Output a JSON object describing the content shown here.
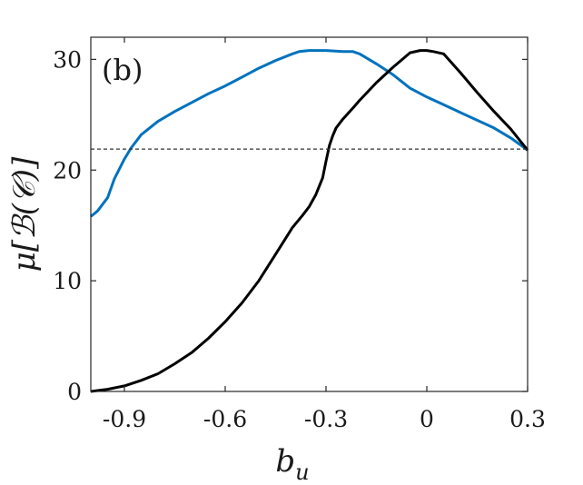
{
  "chart_data": {
    "type": "line",
    "panel_label": "(b)",
    "xlabel": "b_u",
    "ylabel": "μ[ℬ(𝒞)]",
    "xlim": [
      -1.0,
      0.3
    ],
    "ylim": [
      0,
      32
    ],
    "xticks": [
      -0.9,
      -0.6,
      -0.3,
      0,
      0.3
    ],
    "xtick_labels": [
      "-0.9",
      "-0.6",
      "-0.3",
      "0",
      "0.3"
    ],
    "yticks": [
      0,
      10,
      20,
      30
    ],
    "ytick_labels": [
      "0",
      "10",
      "20",
      "30"
    ],
    "grid": false,
    "reference_line": {
      "y": 21.9,
      "style": "dashed",
      "color": "#333333"
    },
    "series": [
      {
        "color": "#0072BD",
        "x": [
          -1.0,
          -0.98,
          -0.95,
          -0.93,
          -0.9,
          -0.88,
          -0.85,
          -0.8,
          -0.75,
          -0.7,
          -0.65,
          -0.6,
          -0.55,
          -0.5,
          -0.45,
          -0.4,
          -0.38,
          -0.35,
          -0.3,
          -0.25,
          -0.22,
          -0.2,
          -0.15,
          -0.1,
          -0.05,
          0.0,
          0.05,
          0.1,
          0.15,
          0.2,
          0.25,
          0.3
        ],
        "y": [
          15.8,
          16.3,
          17.5,
          19.2,
          21.0,
          22.0,
          23.2,
          24.4,
          25.3,
          26.1,
          26.9,
          27.6,
          28.4,
          29.2,
          29.9,
          30.5,
          30.7,
          30.8,
          30.8,
          30.7,
          30.7,
          30.5,
          29.6,
          28.6,
          27.4,
          26.6,
          25.9,
          25.2,
          24.5,
          23.8,
          22.9,
          21.8
        ]
      },
      {
        "color": "#000000",
        "x": [
          -1.0,
          -0.95,
          -0.9,
          -0.85,
          -0.8,
          -0.75,
          -0.7,
          -0.65,
          -0.6,
          -0.55,
          -0.5,
          -0.45,
          -0.4,
          -0.37,
          -0.35,
          -0.33,
          -0.31,
          -0.3,
          -0.29,
          -0.28,
          -0.27,
          -0.25,
          -0.22,
          -0.2,
          -0.15,
          -0.1,
          -0.05,
          -0.02,
          0.0,
          0.02,
          0.05,
          0.1,
          0.15,
          0.2,
          0.25,
          0.3
        ],
        "y": [
          0.0,
          0.2,
          0.5,
          1.0,
          1.6,
          2.5,
          3.5,
          4.8,
          6.3,
          8.0,
          10.0,
          12.4,
          14.8,
          15.9,
          16.7,
          17.8,
          19.3,
          20.8,
          22.2,
          23.1,
          23.8,
          24.6,
          25.6,
          26.3,
          27.9,
          29.3,
          30.6,
          30.8,
          30.8,
          30.7,
          30.5,
          28.8,
          27.0,
          25.3,
          23.7,
          21.8
        ]
      }
    ]
  }
}
